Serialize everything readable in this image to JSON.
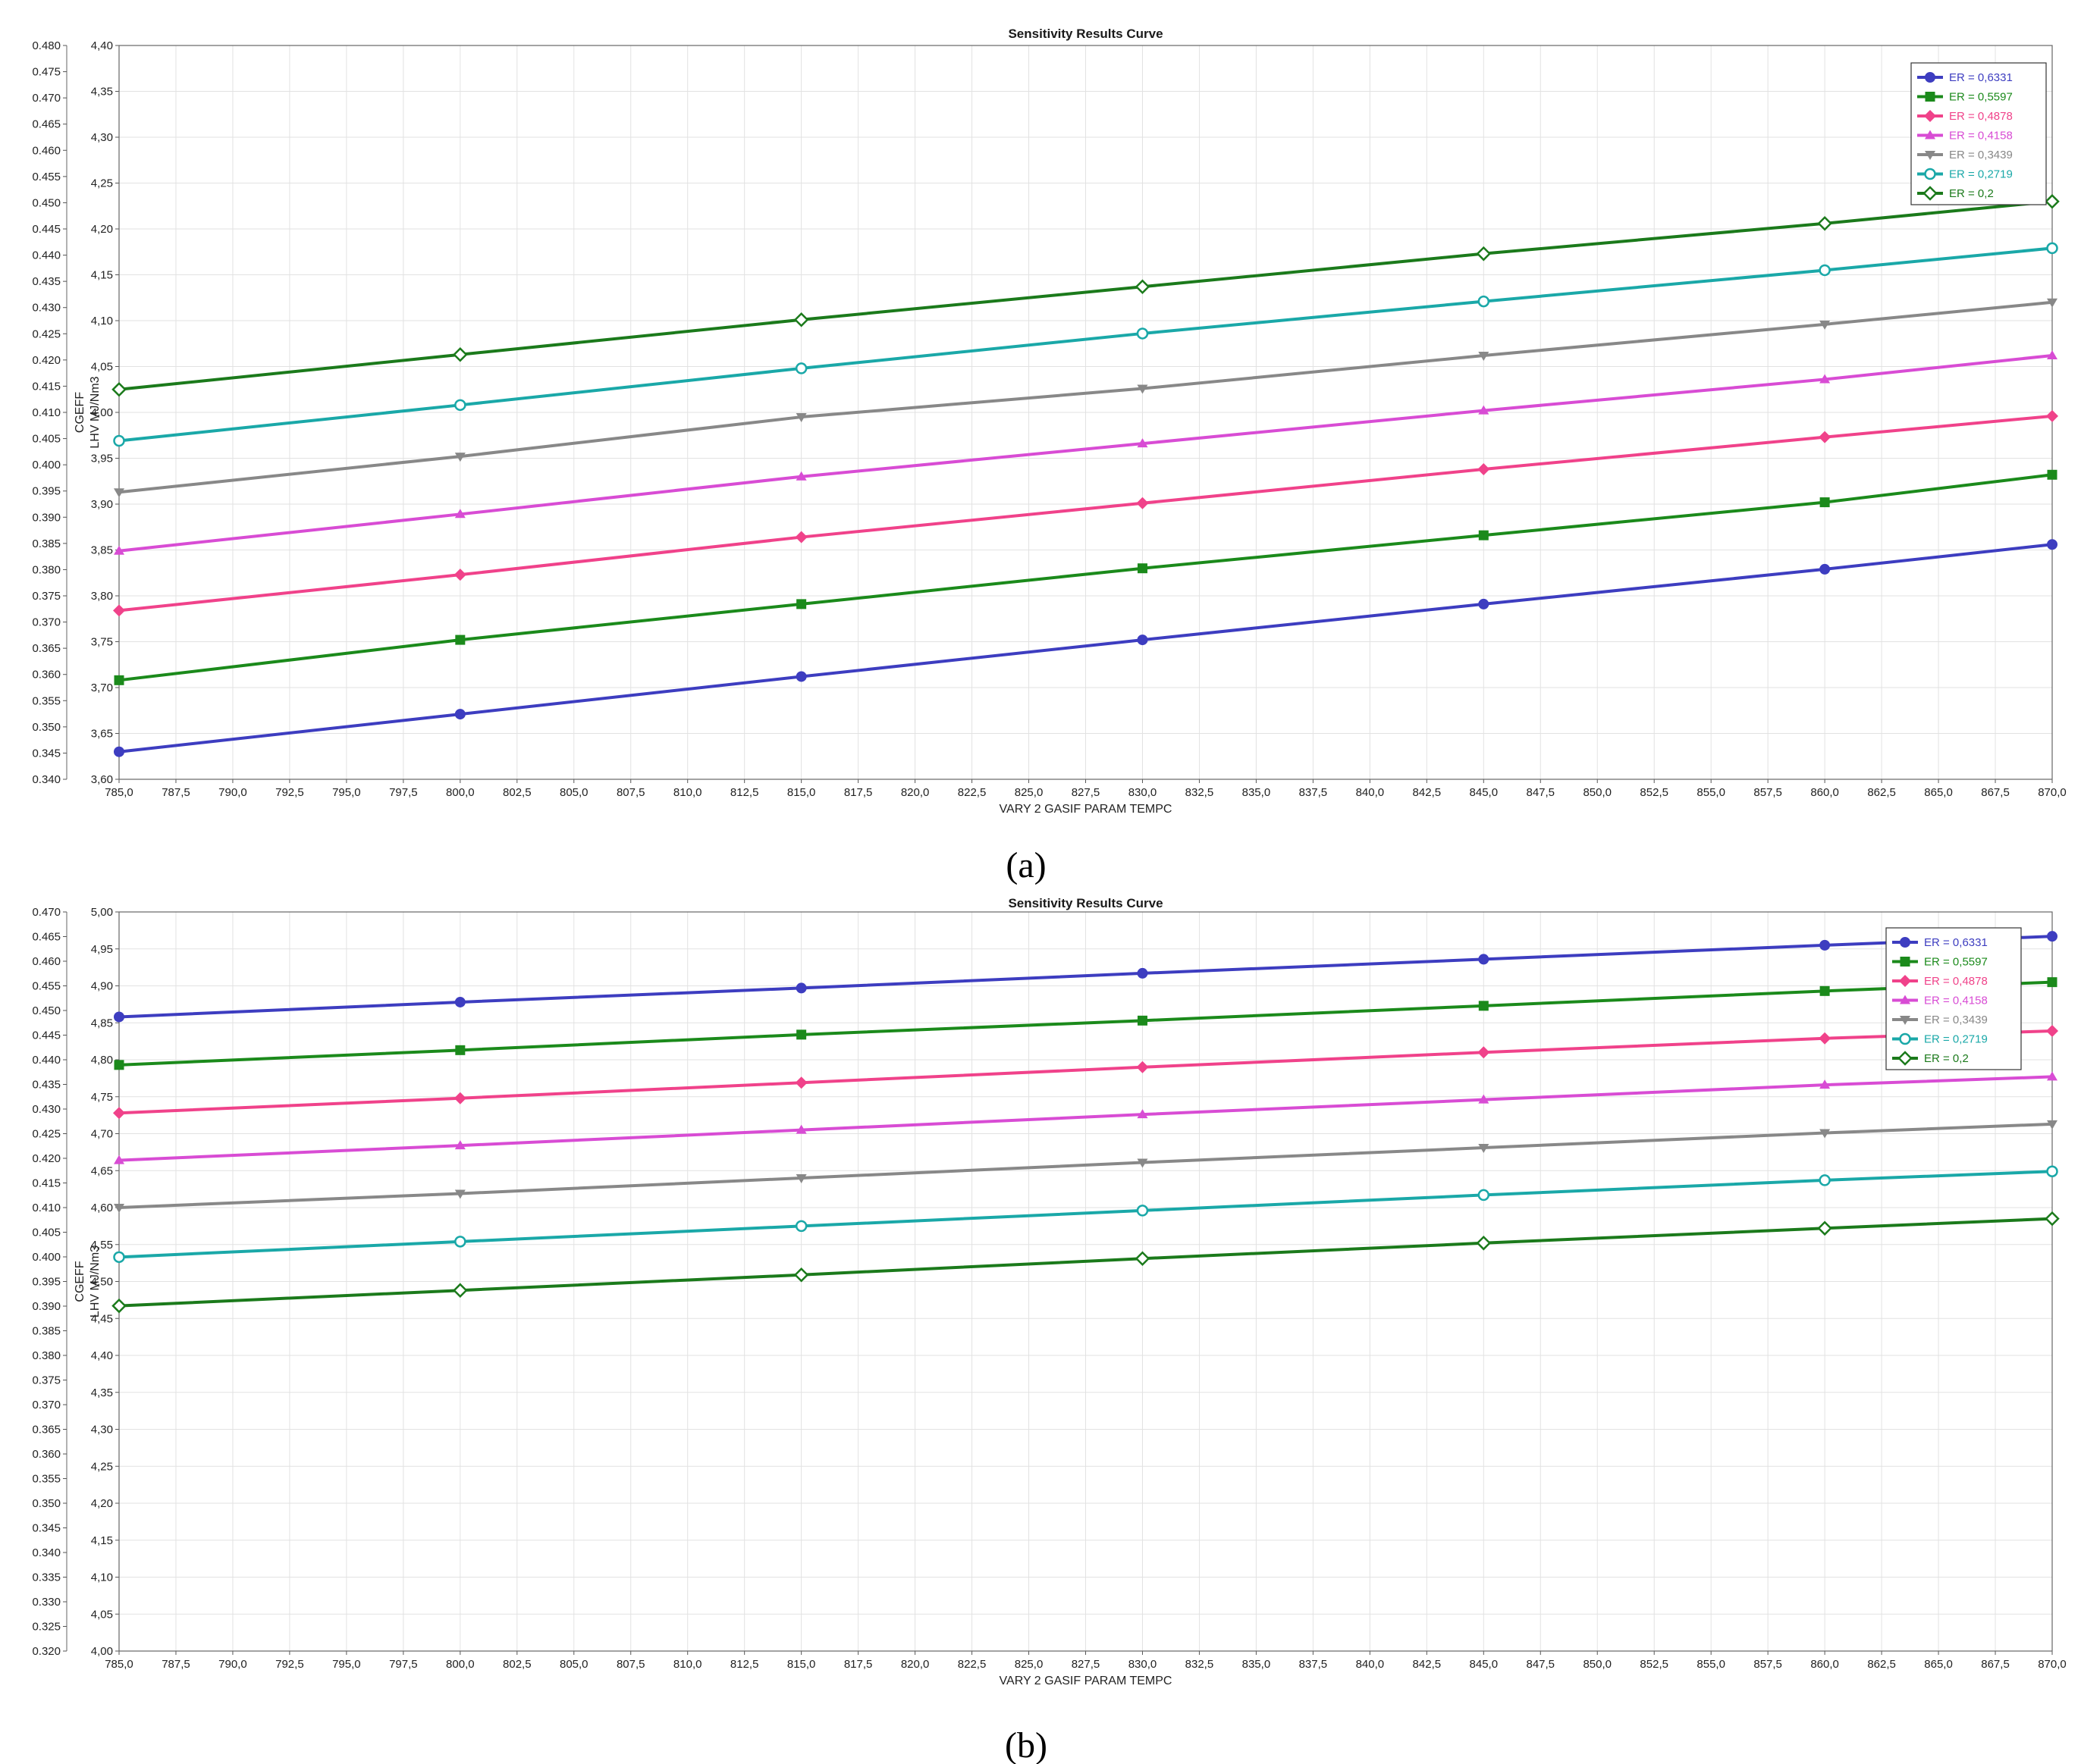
{
  "figure": {
    "panels": [
      {
        "label": "(a)"
      },
      {
        "label": "(b)"
      }
    ]
  },
  "chart_data": [
    {
      "type": "line",
      "title": "Sensitivity Results Curve",
      "xlabel": "VARY  2 GASIF PARAM TEMPC",
      "ylabel": "CGEFF",
      "ylabel2": "LHV MJ/Nm3",
      "x": [
        785,
        800,
        815,
        830,
        845,
        860,
        870
      ],
      "xlim": [
        785,
        870
      ],
      "xticks": [
        "785,0",
        "787,5",
        "790,0",
        "792,5",
        "795,0",
        "797,5",
        "800,0",
        "802,5",
        "805,0",
        "807,5",
        "810,0",
        "812,5",
        "815,0",
        "817,5",
        "820,0",
        "822,5",
        "825,0",
        "827,5",
        "830,0",
        "832,5",
        "835,0",
        "837,5",
        "840,0",
        "842,5",
        "845,0",
        "847,5",
        "850,0",
        "852,5",
        "855,0",
        "857,5",
        "860,0",
        "862,5",
        "865,0",
        "867,5",
        "870,0"
      ],
      "ylim": [
        0.34,
        0.48
      ],
      "yticks": [
        "0.340",
        "0.345",
        "0.350",
        "0.355",
        "0.360",
        "0.365",
        "0.370",
        "0.375",
        "0.380",
        "0.385",
        "0.390",
        "0.395",
        "0.400",
        "0.405",
        "0.410",
        "0.415",
        "0.420",
        "0.425",
        "0.430",
        "0.435",
        "0.440",
        "0.445",
        "0.450",
        "0.455",
        "0.460",
        "0.465",
        "0.470",
        "0.475",
        "0.480"
      ],
      "y2lim": [
        3.6,
        4.4
      ],
      "y2ticks": [
        "3,60",
        "3,65",
        "3,70",
        "3,75",
        "3,80",
        "3,85",
        "3,90",
        "3,95",
        "4,00",
        "4,05",
        "4,10",
        "4,15",
        "4,20",
        "4,25",
        "4,30",
        "4,35",
        "4,40"
      ],
      "grid": true,
      "legend_position": "top-right",
      "series": [
        {
          "name": "ER  =  0,6331",
          "color": "#3d3dc0",
          "marker": "circle",
          "values": [
            3.63,
            3.671,
            3.712,
            3.752,
            3.791,
            3.829,
            3.856
          ]
        },
        {
          "name": "ER  =  0,5597",
          "color": "#1b8a1b",
          "marker": "square",
          "values": [
            3.708,
            3.752,
            3.791,
            3.83,
            3.866,
            3.902,
            3.932
          ]
        },
        {
          "name": "ER  =  0,4878",
          "color": "#f0428a",
          "marker": "diamond",
          "values": [
            3.784,
            3.823,
            3.864,
            3.901,
            3.938,
            3.973,
            3.996
          ]
        },
        {
          "name": "ER  =  0,4158",
          "color": "#d84cd4",
          "marker": "triangle-up",
          "values": [
            3.849,
            3.889,
            3.93,
            3.966,
            4.002,
            4.036,
            4.062
          ]
        },
        {
          "name": "ER  =  0,3439",
          "color": "#888888",
          "marker": "triangle-down",
          "values": [
            3.913,
            3.952,
            3.995,
            4.026,
            4.062,
            4.096,
            4.12
          ]
        },
        {
          "name": "ER  =  0,2719",
          "color": "#1aa8a8",
          "marker": "circle-open",
          "values": [
            3.969,
            4.008,
            4.048,
            4.086,
            4.121,
            4.155,
            4.179
          ]
        },
        {
          "name": "ER  =  0,2",
          "color": "#1b7a1b",
          "marker": "diamond-open",
          "values": [
            4.025,
            4.063,
            4.101,
            4.137,
            4.173,
            4.206,
            4.23
          ]
        }
      ]
    },
    {
      "type": "line",
      "title": "Sensitivity Results Curve",
      "xlabel": "VARY  2 GASIF PARAM TEMPC",
      "ylabel": "CGEFF",
      "ylabel2": "LHV MJ/Nm3",
      "x": [
        785,
        800,
        815,
        830,
        845,
        860,
        870
      ],
      "xlim": [
        785,
        870
      ],
      "xticks": [
        "785,0",
        "787,5",
        "790,0",
        "792,5",
        "795,0",
        "797,5",
        "800,0",
        "802,5",
        "805,0",
        "807,5",
        "810,0",
        "812,5",
        "815,0",
        "817,5",
        "820,0",
        "822,5",
        "825,0",
        "827,5",
        "830,0",
        "832,5",
        "835,0",
        "837,5",
        "840,0",
        "842,5",
        "845,0",
        "847,5",
        "850,0",
        "852,5",
        "855,0",
        "857,5",
        "860,0",
        "862,5",
        "865,0",
        "867,5",
        "870,0"
      ],
      "ylim": [
        0.32,
        0.47
      ],
      "yticks": [
        "0.320",
        "0.325",
        "0.330",
        "0.335",
        "0.340",
        "0.345",
        "0.350",
        "0.355",
        "0.360",
        "0.365",
        "0.370",
        "0.375",
        "0.380",
        "0.385",
        "0.390",
        "0.395",
        "0.400",
        "0.405",
        "0.410",
        "0.415",
        "0.420",
        "0.425",
        "0.430",
        "0.435",
        "0.440",
        "0.445",
        "0.450",
        "0.455",
        "0.460",
        "0.465",
        "0.470"
      ],
      "y2lim": [
        4.0,
        5.0
      ],
      "y2ticks": [
        "4,00",
        "4,05",
        "4,10",
        "4,15",
        "4,20",
        "4,25",
        "4,30",
        "4,35",
        "4,40",
        "4,45",
        "4,50",
        "4,55",
        "4,60",
        "4,65",
        "4,70",
        "4,75",
        "4,80",
        "4,85",
        "4,90",
        "4,95",
        "5,00"
      ],
      "grid": true,
      "legend_position": "top-right",
      "series": [
        {
          "name": "ER  =  0,6331",
          "color": "#3d3dc0",
          "marker": "circle",
          "values": [
            4.858,
            4.878,
            4.897,
            4.917,
            4.936,
            4.955,
            4.967
          ]
        },
        {
          "name": "ER  =  0,5597",
          "color": "#1b8a1b",
          "marker": "square",
          "values": [
            4.793,
            4.813,
            4.834,
            4.853,
            4.873,
            4.893,
            4.905
          ]
        },
        {
          "name": "ER  =  0,4878",
          "color": "#f0428a",
          "marker": "diamond",
          "values": [
            4.728,
            4.748,
            4.769,
            4.79,
            4.81,
            4.829,
            4.839
          ]
        },
        {
          "name": "ER  =  0,4158",
          "color": "#d84cd4",
          "marker": "triangle-up",
          "values": [
            4.664,
            4.684,
            4.705,
            4.726,
            4.746,
            4.766,
            4.777
          ]
        },
        {
          "name": "ER  =  0,3439",
          "color": "#888888",
          "marker": "triangle-down",
          "values": [
            4.6,
            4.619,
            4.64,
            4.661,
            4.681,
            4.701,
            4.713
          ]
        },
        {
          "name": "ER  =  0,2719",
          "color": "#1aa8a8",
          "marker": "circle-open",
          "values": [
            4.533,
            4.554,
            4.575,
            4.596,
            4.617,
            4.637,
            4.649
          ]
        },
        {
          "name": "ER  =  0,2",
          "color": "#1b7a1b",
          "marker": "diamond-open",
          "values": [
            4.467,
            4.488,
            4.509,
            4.531,
            4.552,
            4.572,
            4.585
          ]
        }
      ]
    }
  ]
}
